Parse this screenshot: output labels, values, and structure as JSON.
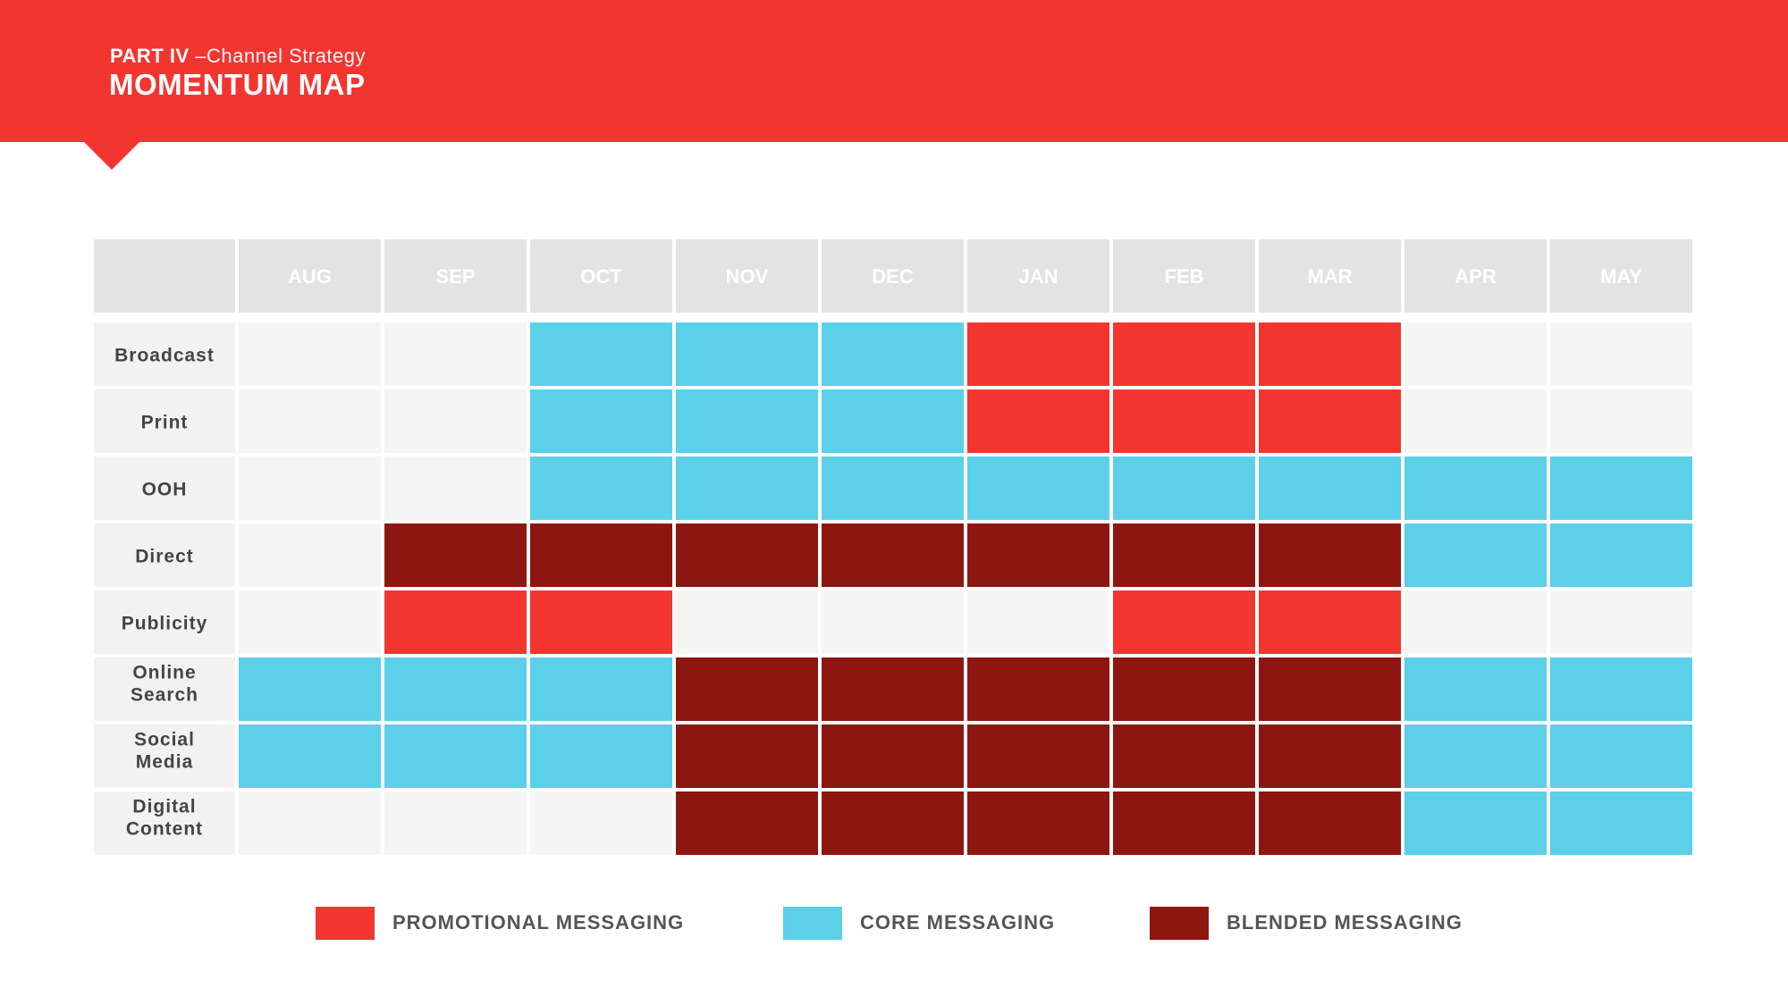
{
  "header": {
    "part": "PART IV",
    "subtitle": "–Channel Strategy",
    "title": "MOMENTUM MAP"
  },
  "colors": {
    "header": "#f33530",
    "promotional": "#f33530",
    "core": "#5bd0e8",
    "blended": "#8e1610",
    "empty": "#f5f5f5",
    "header_cell": "#e3e3e3",
    "row_label_cell": "#f2f2f2",
    "label_text": "#444444",
    "month_text": "#ffffff"
  },
  "chart_data": {
    "type": "heatmap",
    "title": "MOMENTUM MAP",
    "x": [
      "AUG",
      "SEP",
      "OCT",
      "NOV",
      "DEC",
      "JAN",
      "FEB",
      "MAR",
      "APR",
      "MAY"
    ],
    "y": [
      "Broadcast",
      "Print",
      "OOH",
      "Direct",
      "Publicity",
      "Online Search",
      "Social Media",
      "Digital Content"
    ],
    "legend": [
      {
        "key": "P",
        "label": "PROMOTIONAL MESSAGING"
      },
      {
        "key": "C",
        "label": "CORE MESSAGING"
      },
      {
        "key": "B",
        "label": "BLENDED MESSAGING"
      }
    ],
    "legend_position": "bottom",
    "values": [
      [
        "",
        "",
        "C",
        "C",
        "C",
        "P",
        "P",
        "P",
        "",
        ""
      ],
      [
        "",
        "",
        "C",
        "C",
        "C",
        "P",
        "P",
        "P",
        "",
        ""
      ],
      [
        "",
        "",
        "C",
        "C",
        "C",
        "C",
        "C",
        "C",
        "C",
        "C"
      ],
      [
        "",
        "B",
        "B",
        "B",
        "B",
        "B",
        "B",
        "B",
        "C",
        "C"
      ],
      [
        "",
        "P",
        "P",
        "",
        "",
        "",
        "P",
        "P",
        "",
        ""
      ],
      [
        "C",
        "C",
        "C",
        "B",
        "B",
        "B",
        "B",
        "B",
        "C",
        "C"
      ],
      [
        "C",
        "C",
        "C",
        "B",
        "B",
        "B",
        "B",
        "B",
        "C",
        "C"
      ],
      [
        "",
        "",
        "",
        "B",
        "B",
        "B",
        "B",
        "B",
        "C",
        "C"
      ]
    ]
  }
}
